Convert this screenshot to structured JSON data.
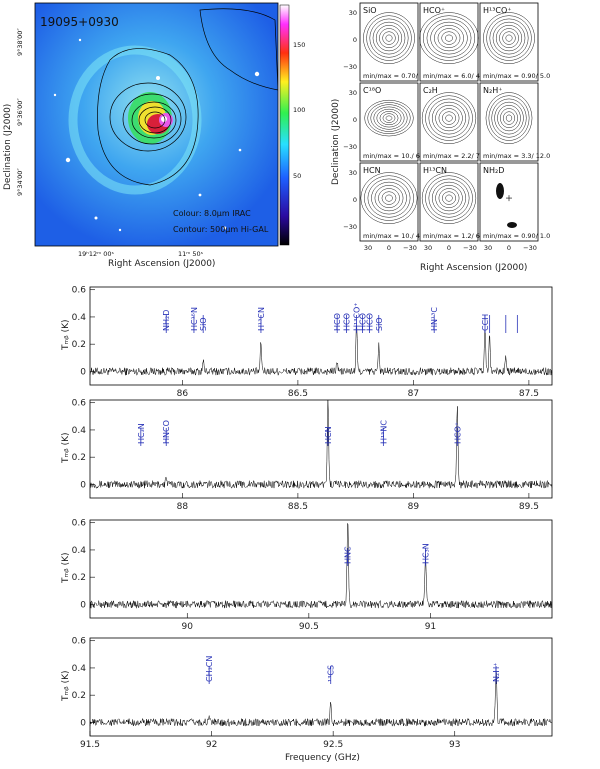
{
  "map": {
    "title": "19095+0930",
    "caption_colour": "Colour: 8.0μm IRAC",
    "caption_contour": "Contour: 500μm Hi-GAL",
    "xlabel": "Right Ascension (J2000)",
    "ylabel": "Declination (J2000)",
    "xticks": [
      "19ʰ12ᵐ 00ˢ",
      "11ᵐ 50ˢ"
    ],
    "yticks": [
      "9°38′00″",
      "9°36′00″",
      "9°34′00″"
    ],
    "colorbar_ticks": [
      "150",
      "100",
      "50"
    ],
    "colorbar_range": [
      0,
      180
    ]
  },
  "grid": {
    "xlabel": "Right Ascension (J2000)",
    "ylabel": "Declination (J2000)",
    "xticks": [
      "30",
      "0",
      "−30"
    ],
    "yticks": [
      "30",
      "0",
      "−30"
    ],
    "panels": [
      {
        "mol": "SiO",
        "minmax": "min/max = 0.70/ 4.3"
      },
      {
        "mol": "HCO⁺",
        "minmax": "min/max = 6.0/ 41.9"
      },
      {
        "mol": "H¹³CO⁺",
        "minmax": "min/max = 0.90/ 5.0"
      },
      {
        "mol": "C¹⁸O",
        "minmax": "min/max = 10./ 61."
      },
      {
        "mol": "C₂H",
        "minmax": "min/max = 2.2/ 7.2"
      },
      {
        "mol": "N₂H⁺",
        "minmax": "min/max = 3.3/ 12.0"
      },
      {
        "mol": "HCN",
        "minmax": "min/max = 10./ 43."
      },
      {
        "mol": "H¹³CN",
        "minmax": "min/max = 1.2/ 6."
      },
      {
        "mol": "NH₂D",
        "minmax": "min/max = 0.90/ 1.0"
      }
    ]
  },
  "spectra": {
    "xlabel": "Frequency (GHz)",
    "ylabel": "Tₘᵦ (K)",
    "yticks": [
      "0.6",
      "0.4",
      "0.2",
      "0"
    ]
  },
  "chart_data": [
    {
      "type": "line",
      "xlabel": "",
      "ylabel": "T_mb (K)",
      "xlim": [
        85.6,
        87.6
      ],
      "ylim": [
        -0.1,
        0.62
      ],
      "xticks": [
        86,
        86.5,
        87,
        87.5
      ],
      "noise_rms": 0.028,
      "peaks": [
        {
          "x": 86.09,
          "y": 0.08
        },
        {
          "x": 86.34,
          "y": 0.21
        },
        {
          "x": 86.67,
          "y": 0.08
        },
        {
          "x": 86.754,
          "y": 0.36
        },
        {
          "x": 86.85,
          "y": 0.19
        },
        {
          "x": 87.31,
          "y": 0.33
        },
        {
          "x": 87.33,
          "y": 0.27
        },
        {
          "x": 87.4,
          "y": 0.1
        }
      ],
      "lines": [
        {
          "label": "NH₂D",
          "x": 85.93
        },
        {
          "label": "HC¹⁵N",
          "x": 86.05
        },
        {
          "label": "SiO",
          "x": 86.09
        },
        {
          "label": "H¹³CN",
          "x": 86.34
        },
        {
          "label": "HCO",
          "x": 86.67
        },
        {
          "label": "HCO",
          "x": 86.71
        },
        {
          "label": "H¹³CO⁺",
          "x": 86.754
        },
        {
          "label": "HCO",
          "x": 86.78
        },
        {
          "label": "HCO",
          "x": 86.81
        },
        {
          "label": "SiO",
          "x": 86.85
        },
        {
          "label": "HN¹³C",
          "x": 87.09
        },
        {
          "label": "CCH",
          "x": 87.31
        },
        {
          "label": "",
          "x": 87.33
        },
        {
          "label": "",
          "x": 87.4
        },
        {
          "label": "",
          "x": 87.45
        }
      ]
    },
    {
      "type": "line",
      "xlabel": "",
      "ylabel": "T_mb (K)",
      "xlim": [
        87.6,
        89.6
      ],
      "ylim": [
        -0.1,
        0.62
      ],
      "xticks": [
        88,
        88.5,
        89,
        89.5
      ],
      "noise_rms": 0.028,
      "peaks": [
        {
          "x": 88.63,
          "y": 0.65
        },
        {
          "x": 89.19,
          "y": 0.58
        },
        {
          "x": 87.93,
          "y": 0.05
        }
      ],
      "lines": [
        {
          "label": "HC₃N",
          "x": 87.82
        },
        {
          "label": "HNCO",
          "x": 87.93
        },
        {
          "label": "HCN",
          "x": 88.63
        },
        {
          "label": "H¹⁵NC",
          "x": 88.87
        },
        {
          "label": "HCO⁺",
          "x": 89.19
        }
      ]
    },
    {
      "type": "line",
      "xlabel": "",
      "ylabel": "T_mb (K)",
      "xlim": [
        89.6,
        91.5
      ],
      "ylim": [
        -0.1,
        0.62
      ],
      "xticks": [
        90,
        90.5,
        91
      ],
      "noise_rms": 0.028,
      "peaks": [
        {
          "x": 90.66,
          "y": 0.65
        },
        {
          "x": 90.98,
          "y": 0.36
        }
      ],
      "lines": [
        {
          "label": "HNC",
          "x": 90.66
        },
        {
          "label": "HC₃N",
          "x": 90.98
        }
      ]
    },
    {
      "type": "line",
      "xlabel": "Frequency (GHz)",
      "ylabel": "T_mb (K)",
      "xlim": [
        91.5,
        93.4
      ],
      "ylim": [
        -0.1,
        0.62
      ],
      "xticks": [
        91.5,
        92,
        92.5,
        93
      ],
      "noise_rms": 0.028,
      "peaks": [
        {
          "x": 91.99,
          "y": 0.05
        },
        {
          "x": 92.49,
          "y": 0.14
        },
        {
          "x": 93.17,
          "y": 0.42
        }
      ],
      "lines": [
        {
          "label": "CH₃CN",
          "x": 91.99
        },
        {
          "label": "¹³CS",
          "x": 92.49
        },
        {
          "label": "N₂H⁺",
          "x": 93.17
        }
      ]
    }
  ]
}
